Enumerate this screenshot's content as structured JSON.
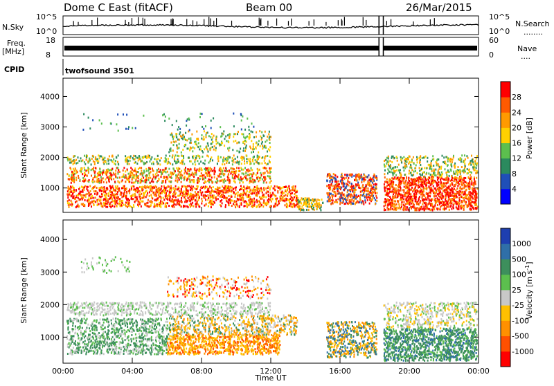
{
  "header": {
    "title": "Dome C East (fitACF)",
    "beam": "Beam 00",
    "date": "26/Mar/2015"
  },
  "panels": {
    "nsky_label": "N.Sky",
    "nsearch_label": "N.Search",
    "nsearch_dots": "........",
    "freq_label": "Freq.",
    "freq_unit": "[MHz]",
    "nave_label": "Nave",
    "nave_dots": "....",
    "cpid_label": "CPID",
    "cpid_value": "twofsound 3501",
    "nsky_ticks": [
      "10^5",
      "10^0"
    ],
    "nsearch_ticks": [
      "10^5",
      "10^0"
    ],
    "freq_ticks": [
      "18",
      "8"
    ],
    "nave_ticks": [
      "60",
      "0"
    ]
  },
  "chart_data": [
    {
      "type": "heatmap",
      "name": "power",
      "ylabel": "Slant Range [km]",
      "y_ticks": [
        1000,
        2000,
        3000,
        4000
      ],
      "ylim": [
        200,
        4600
      ],
      "x_ticks": [
        "00:00",
        "04:00",
        "08:00",
        "12:00",
        "16:00",
        "20:00",
        "00:00"
      ],
      "colorbar_label": "Power [dB]",
      "colorbar_ticks": [
        4,
        8,
        12,
        16,
        20,
        24,
        28
      ],
      "colorbar_colors": [
        "#0000ff",
        "#1f4fb8",
        "#2b8a5e",
        "#5cbf4e",
        "#ffd000",
        "#ff9a00",
        "#ff5a00",
        "#ff0000"
      ],
      "data_gap_utc": [
        "18:15",
        "18:30"
      ]
    },
    {
      "type": "heatmap",
      "name": "velocity",
      "ylabel": "Slant Range [km]",
      "y_ticks": [
        1000,
        2000,
        3000,
        4000
      ],
      "ylim": [
        200,
        4600
      ],
      "x_ticks": [
        "00:00",
        "04:00",
        "08:00",
        "12:00",
        "16:00",
        "20:00",
        "00:00"
      ],
      "xlabel": "Time UT",
      "colorbar_label": "Velocity [m s",
      "colorbar_label_sup": "-1",
      "colorbar_ticks": [
        "1000",
        "500",
        "100",
        "25",
        "-25",
        "-100",
        "-500",
        "-1000"
      ],
      "colorbar_colors": [
        "#1e3fb0",
        "#2f6fa8",
        "#3d8f5c",
        "#5cbf4e",
        "#c8c8c8",
        "#ffc000",
        "#ff9000",
        "#ff5000",
        "#ff0000"
      ],
      "data_gap_utc": [
        "18:15",
        "18:30"
      ]
    }
  ]
}
